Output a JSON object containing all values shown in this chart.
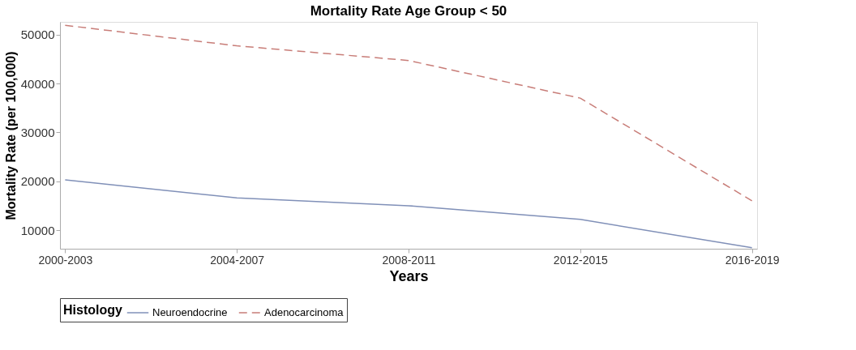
{
  "chart_data": {
    "type": "line",
    "title": "Mortality Rate Age Group < 50",
    "xlabel": "Years",
    "ylabel": "Mortality Rate (per 100,000)",
    "legend_title": "Histology",
    "categories": [
      "2000-2003",
      "2004-2007",
      "2008-2011",
      "2012-2015",
      "2016-2019"
    ],
    "series": [
      {
        "name": "Neuroendocrine",
        "color": "#8090b8",
        "line_style": "solid",
        "values": [
          20300,
          16600,
          15000,
          12200,
          6400
        ]
      },
      {
        "name": "Adenocarcinoma",
        "color": "#c87d78",
        "line_style": "dashed",
        "values": [
          51900,
          47700,
          44700,
          37000,
          16000
        ]
      }
    ],
    "ylim": [
      6200,
      52600
    ],
    "yticks": [
      10000,
      20000,
      30000,
      40000,
      50000
    ],
    "grid": false,
    "legend": "bottom",
    "marker": "none"
  }
}
